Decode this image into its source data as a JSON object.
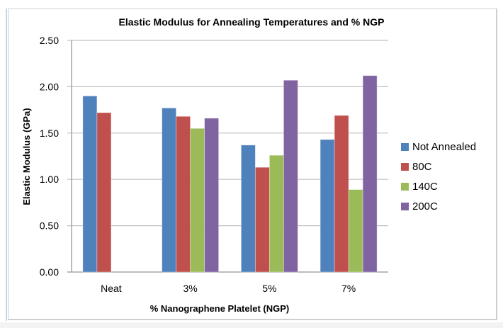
{
  "chart_data": {
    "type": "bar",
    "title": "Elastic Modulus for Annealing Temperatures and % NGP",
    "xlabel": "% Nanographene Platelet (NGP)",
    "ylabel": "Elastic Modulus (GPa)",
    "categories": [
      "Neat",
      "3%",
      "5%",
      "7%"
    ],
    "ylim": [
      0,
      2.5
    ],
    "yticks": [
      "0.00",
      "0.50",
      "1.00",
      "1.50",
      "2.00",
      "2.50"
    ],
    "grid": true,
    "legend_position": "right",
    "series": [
      {
        "name": "Not Annealed",
        "color": "#4F81BD",
        "values": [
          1.9,
          1.77,
          1.37,
          1.43
        ]
      },
      {
        "name": "80C",
        "color": "#C0504D",
        "values": [
          1.72,
          1.68,
          1.13,
          1.69
        ]
      },
      {
        "name": "140C",
        "color": "#9BBB59",
        "values": [
          null,
          1.55,
          1.26,
          0.89
        ]
      },
      {
        "name": "200C",
        "color": "#8064A2",
        "values": [
          null,
          1.66,
          2.07,
          2.12
        ]
      }
    ]
  }
}
